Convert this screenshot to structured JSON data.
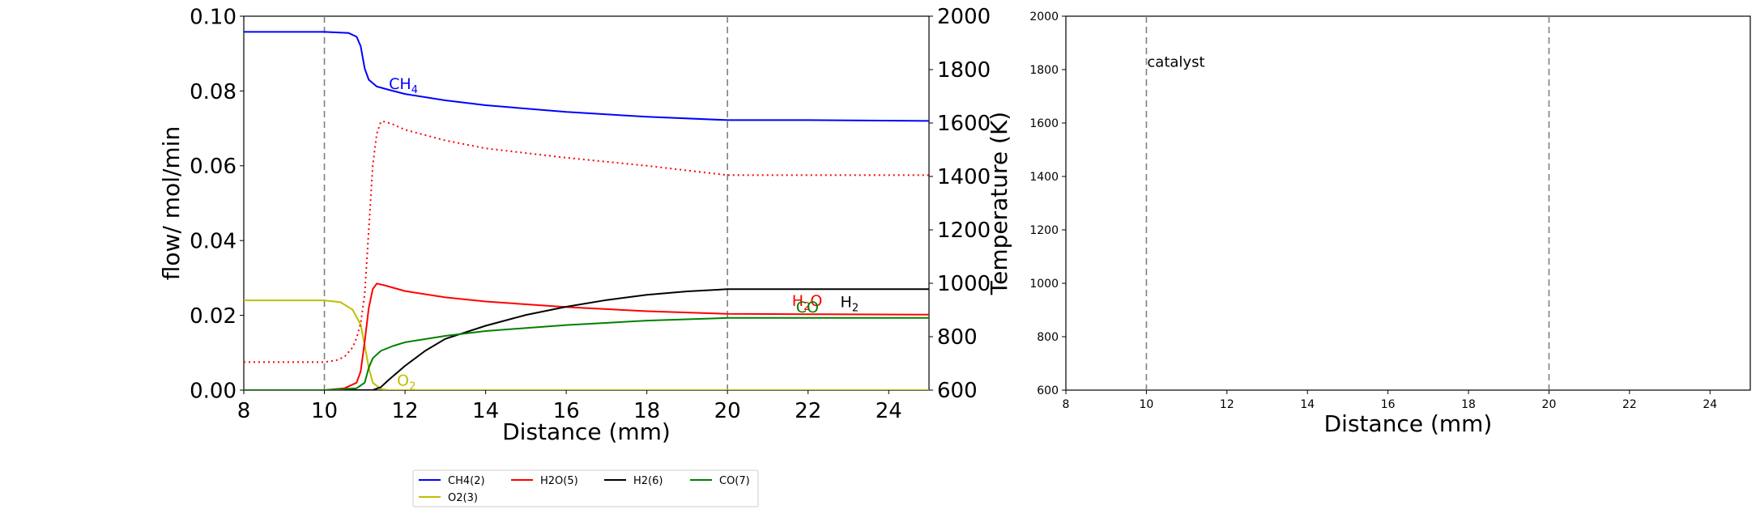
{
  "chart_data": [
    {
      "type": "line",
      "xlabel": "Distance (mm)",
      "ylabel": "flow/ mol/min",
      "y2label": "Temperature (K)",
      "xlim": [
        8,
        25
      ],
      "ylim": [
        0,
        0.1
      ],
      "y2lim": [
        600,
        2000
      ],
      "xticks": [
        "8",
        "10",
        "12",
        "14",
        "16",
        "18",
        "20",
        "22",
        "24"
      ],
      "yticks": [
        "0.00",
        "0.02",
        "0.04",
        "0.06",
        "0.08",
        "0.10"
      ],
      "y2ticks": [
        "600",
        "800",
        "1000",
        "1200",
        "1400",
        "1600",
        "1800",
        "2000"
      ],
      "vlines": [
        10,
        20
      ],
      "grid": false,
      "series": [
        {
          "name": "CH4(2)",
          "color": "#0000ff",
          "axis": "left",
          "x": [
            8,
            10,
            10.6,
            10.8,
            10.9,
            11.0,
            11.1,
            11.3,
            11.6,
            12,
            13,
            14,
            16,
            18,
            20,
            22,
            25
          ],
          "y": [
            0.0958,
            0.0958,
            0.0955,
            0.0945,
            0.092,
            0.086,
            0.083,
            0.0812,
            0.0803,
            0.0792,
            0.0775,
            0.0762,
            0.0744,
            0.0731,
            0.0722,
            0.0722,
            0.072
          ]
        },
        {
          "name": "O2(3)",
          "color": "#bfbf00",
          "axis": "left",
          "x": [
            8,
            10,
            10.4,
            10.7,
            10.9,
            11.0,
            11.1,
            11.2,
            11.4,
            11.6,
            12,
            25
          ],
          "y": [
            0.024,
            0.024,
            0.0235,
            0.0215,
            0.0175,
            0.012,
            0.006,
            0.002,
            0.0003,
            0.0,
            0.0,
            0.0
          ]
        },
        {
          "name": "H2O(5)",
          "color": "#ff0000",
          "axis": "left",
          "x": [
            8,
            10,
            10.5,
            10.8,
            10.9,
            11.0,
            11.1,
            11.2,
            11.3,
            11.5,
            12,
            13,
            14,
            16,
            18,
            20,
            22,
            25
          ],
          "y": [
            0.0,
            0.0,
            0.0005,
            0.002,
            0.005,
            0.013,
            0.022,
            0.027,
            0.0285,
            0.028,
            0.0265,
            0.0248,
            0.0237,
            0.0222,
            0.0211,
            0.0204,
            0.0203,
            0.0202
          ]
        },
        {
          "name": "H2(6)",
          "color": "#000000",
          "axis": "left",
          "x": [
            8,
            11.2,
            11.4,
            11.6,
            12,
            12.5,
            13,
            14,
            15,
            16,
            17,
            18,
            19,
            20,
            25
          ],
          "y": [
            0.0,
            0.0,
            0.0008,
            0.0028,
            0.0065,
            0.0105,
            0.0137,
            0.0172,
            0.0201,
            0.0223,
            0.0241,
            0.0255,
            0.0264,
            0.027,
            0.027
          ]
        },
        {
          "name": "CO(7)",
          "color": "#008000",
          "axis": "left",
          "x": [
            8,
            10,
            10.8,
            11.0,
            11.1,
            11.2,
            11.4,
            11.7,
            12,
            13,
            14,
            16,
            18,
            20,
            25
          ],
          "y": [
            0.0,
            0.0,
            0.0005,
            0.002,
            0.006,
            0.0085,
            0.0105,
            0.0118,
            0.0128,
            0.0145,
            0.0158,
            0.0174,
            0.0186,
            0.0193,
            0.0193
          ]
        },
        {
          "name": "",
          "color": "#ff0000",
          "axis": "right",
          "dashed": true,
          "x": [
            8,
            10,
            10.3,
            10.5,
            10.7,
            10.8,
            10.9,
            11.0,
            11.1,
            11.2,
            11.3,
            11.4,
            11.5,
            11.7,
            12,
            13,
            14,
            16,
            18,
            20,
            22,
            25
          ],
          "y": [
            705,
            705,
            712,
            725,
            760,
            795,
            850,
            960,
            1200,
            1440,
            1560,
            1605,
            1605,
            1595,
            1575,
            1535,
            1505,
            1470,
            1440,
            1405,
            1405,
            1405
          ]
        }
      ],
      "annotations": [
        {
          "text": "CH",
          "sub": "4",
          "x": 11.6,
          "y": 0.0805,
          "color": "#0000ff"
        },
        {
          "text": "O",
          "sub": "2",
          "x": 11.8,
          "y": 0.0012,
          "color": "#bfbf00"
        },
        {
          "text": "H",
          "sub": "2",
          "tail": "O",
          "x": 21.6,
          "y": 0.0225,
          "color": "#ff0000"
        },
        {
          "text": "CO",
          "sub": "",
          "x": 21.7,
          "y": 0.0208,
          "color": "#008000"
        },
        {
          "text": "H",
          "sub": "2",
          "x": 22.8,
          "y": 0.0222,
          "color": "#000000"
        }
      ]
    },
    {
      "type": "line",
      "xlabel": "Distance (mm)",
      "ylabel": "",
      "xlim": [
        8,
        25
      ],
      "ylim": [
        600,
        2000
      ],
      "xticks": [
        "8",
        "10",
        "12",
        "14",
        "16",
        "18",
        "20",
        "22",
        "24"
      ],
      "yticks": [
        "600",
        "800",
        "1000",
        "1200",
        "1400",
        "1600",
        "1800",
        "2000"
      ],
      "vlines": [
        10,
        20
      ],
      "grid": false,
      "series": [],
      "annotations": [
        {
          "text": "catalyst",
          "x": 10.0,
          "y": 1810,
          "color": "#000000"
        }
      ]
    }
  ],
  "legend": {
    "placement": "bottom-center",
    "entries": [
      {
        "label": "CH4(2)",
        "color": "#0000ff"
      },
      {
        "label": "H2O(5)",
        "color": "#ff0000"
      },
      {
        "label": "H2(6)",
        "color": "#000000"
      },
      {
        "label": "CO(7)",
        "color": "#008000"
      },
      {
        "label": "O2(3)",
        "color": "#bfbf00"
      }
    ]
  }
}
